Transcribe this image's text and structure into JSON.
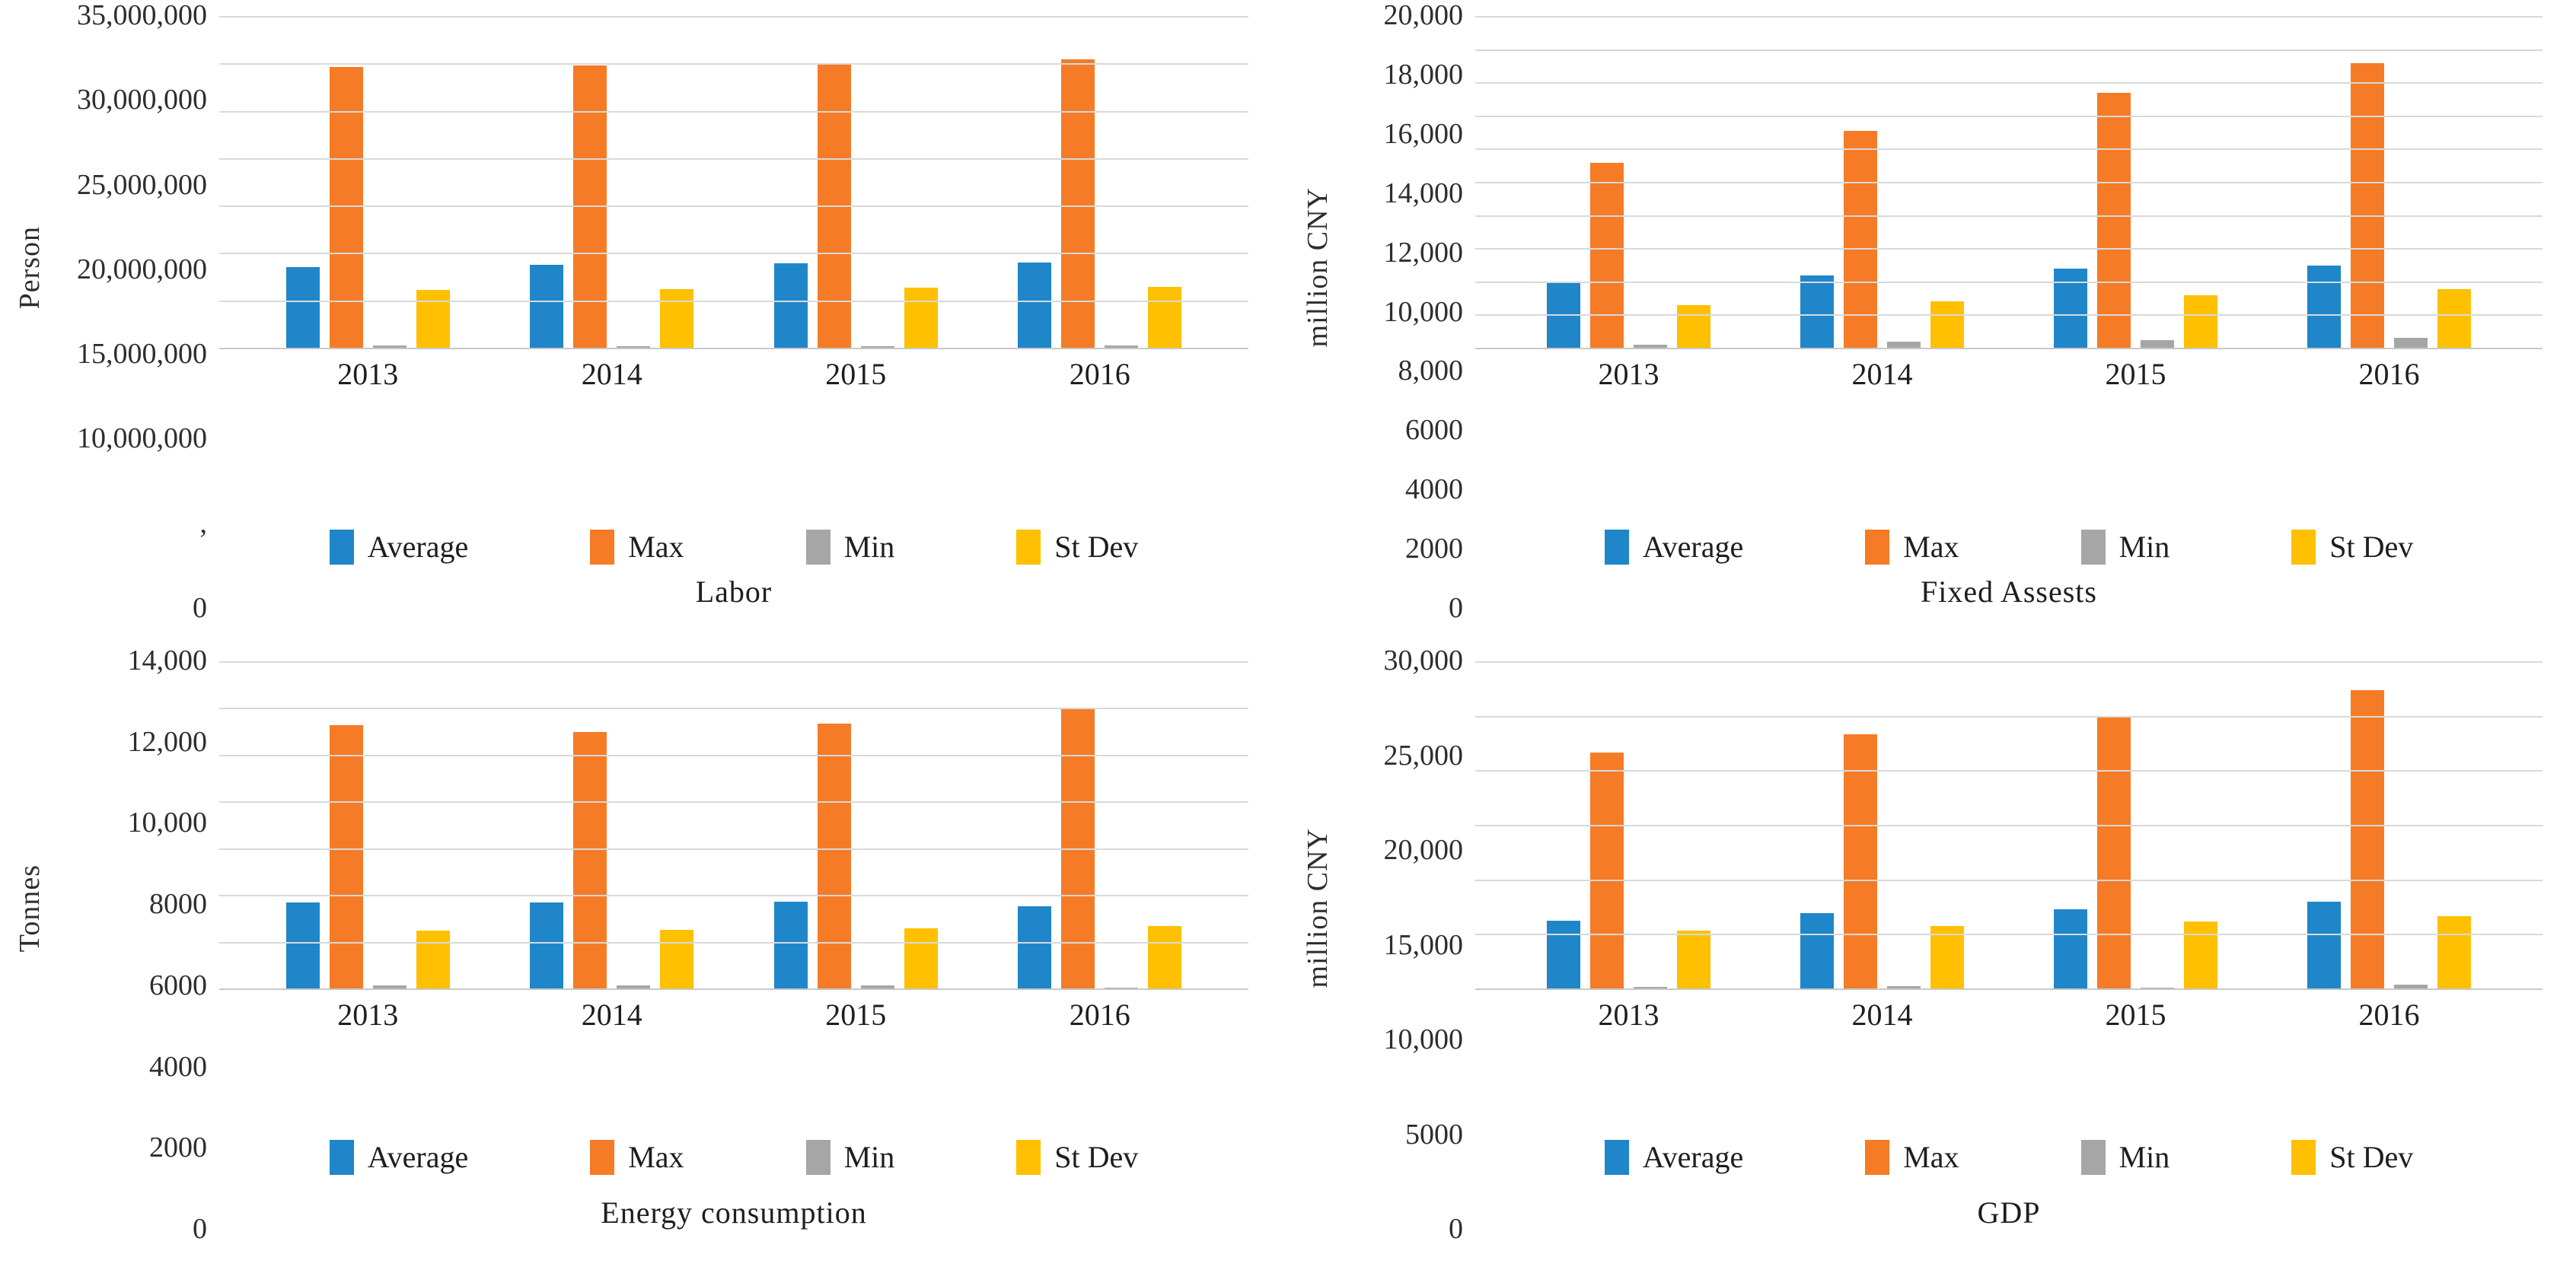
{
  "figure": {
    "background": "#ffffff",
    "grid_color": "#d9d9d9",
    "axis_text_color": "#303030",
    "series_colors": {
      "Average": "#1f86c9",
      "Max": "#f57b26",
      "Min": "#a6a6a6",
      "St Dev": "#fec000"
    }
  },
  "chart_data": [
    {
      "type": "bar",
      "title": "Labor",
      "ylabel": "Person",
      "xlabel": "",
      "categories": [
        "2013",
        "2014",
        "2015",
        "2016"
      ],
      "series": [
        {
          "name": "Average",
          "values": [
            8600000,
            8800000,
            9000000,
            9100000
          ]
        },
        {
          "name": "Max",
          "values": [
            29700000,
            29900000,
            30100000,
            30500000
          ]
        },
        {
          "name": "Min",
          "values": [
            300000,
            250000,
            250000,
            300000
          ]
        },
        {
          "name": "St Dev",
          "values": [
            6200000,
            6300000,
            6400000,
            6500000
          ]
        }
      ],
      "ylim": [
        0,
        35000000
      ],
      "grid": true,
      "legend_position": "bottom",
      "yticks": [
        {
          "value": 35000000,
          "label": "35,000,000"
        },
        {
          "value": 30000000,
          "label": "30,000,000"
        },
        {
          "value": 25000000,
          "label": "25,000,000"
        },
        {
          "value": 20000000,
          "label": "20,000,000"
        },
        {
          "value": 15000000,
          "label": "15,000,000"
        },
        {
          "value": 10000000,
          "label": "10,000,000"
        },
        {
          "value": 5000000,
          "label": ","
        },
        {
          "value": 0,
          "label": "0"
        }
      ]
    },
    {
      "type": "bar",
      "title": "Fixed Assests",
      "ylabel": "million CNY",
      "xlabel": "",
      "categories": [
        "2013",
        "2014",
        "2015",
        "2016"
      ],
      "series": [
        {
          "name": "Average",
          "values": [
            4000,
            4400,
            4800,
            5000
          ]
        },
        {
          "name": "Max",
          "values": [
            11200,
            13100,
            15400,
            17200
          ]
        },
        {
          "name": "Min",
          "values": [
            250,
            400,
            500,
            650
          ]
        },
        {
          "name": "St Dev",
          "values": [
            2600,
            2850,
            3200,
            3600
          ]
        }
      ],
      "ylim": [
        0,
        20000
      ],
      "grid": true,
      "legend_position": "bottom",
      "yticks": [
        {
          "value": 20000,
          "label": "20,000"
        },
        {
          "value": 18000,
          "label": "18,000"
        },
        {
          "value": 16000,
          "label": "16,000"
        },
        {
          "value": 14000,
          "label": "14,000"
        },
        {
          "value": 12000,
          "label": "12,000"
        },
        {
          "value": 10000,
          "label": "10,000"
        },
        {
          "value": 8000,
          "label": "8,000"
        },
        {
          "value": 6000,
          "label": "6000"
        },
        {
          "value": 4000,
          "label": "4000"
        },
        {
          "value": 2000,
          "label": "2000"
        },
        {
          "value": 0,
          "label": "0"
        }
      ]
    },
    {
      "type": "bar",
      "title": "Energy consumption",
      "ylabel": "Tonnes",
      "xlabel": "",
      "categories": [
        "2013",
        "2014",
        "2015",
        "2016"
      ],
      "series": [
        {
          "name": "Average",
          "values": [
            3700,
            3700,
            3750,
            3550
          ]
        },
        {
          "name": "Max",
          "values": [
            11300,
            11000,
            11350,
            12000
          ]
        },
        {
          "name": "Min",
          "values": [
            150,
            150,
            150,
            80
          ]
        },
        {
          "name": "St Dev",
          "values": [
            2500,
            2550,
            2600,
            2700
          ]
        }
      ],
      "ylim": [
        0,
        14000
      ],
      "grid": true,
      "legend_position": "bottom",
      "yticks": [
        {
          "value": 14000,
          "label": "14,000"
        },
        {
          "value": 12000,
          "label": "12,000"
        },
        {
          "value": 10000,
          "label": "10,000"
        },
        {
          "value": 8000,
          "label": "8000"
        },
        {
          "value": 6000,
          "label": "6000"
        },
        {
          "value": 4000,
          "label": "4000"
        },
        {
          "value": 2000,
          "label": "2000"
        },
        {
          "value": 0,
          "label": "0"
        }
      ]
    },
    {
      "type": "bar",
      "title": "GDP",
      "ylabel": "million CNY",
      "xlabel": "",
      "categories": [
        "2013",
        "2014",
        "2015",
        "2016"
      ],
      "series": [
        {
          "name": "Average",
          "values": [
            6300,
            7000,
            7300,
            8000
          ]
        },
        {
          "name": "Max",
          "values": [
            21700,
            23400,
            25000,
            27400
          ]
        },
        {
          "name": "Min",
          "values": [
            200,
            280,
            150,
            400
          ]
        },
        {
          "name": "St Dev",
          "values": [
            5400,
            5800,
            6200,
            6700
          ]
        }
      ],
      "ylim": [
        0,
        30000
      ],
      "grid": true,
      "legend_position": "bottom",
      "yticks": [
        {
          "value": 30000,
          "label": "30,000"
        },
        {
          "value": 25000,
          "label": "25,000"
        },
        {
          "value": 20000,
          "label": "20,000"
        },
        {
          "value": 15000,
          "label": "15,000"
        },
        {
          "value": 10000,
          "label": "10,000"
        },
        {
          "value": 5000,
          "label": "5000"
        },
        {
          "value": 0,
          "label": "0"
        }
      ]
    }
  ]
}
